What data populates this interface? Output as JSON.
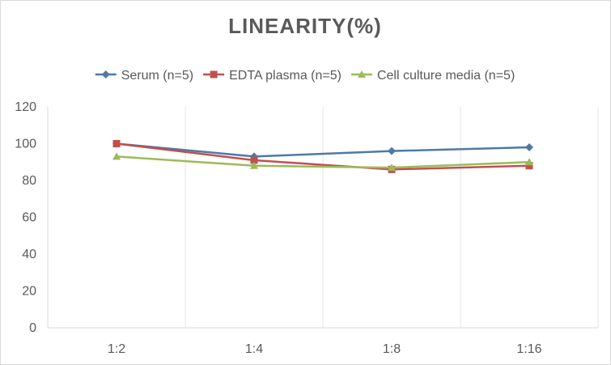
{
  "chart_data": {
    "type": "line",
    "title": "LINEARITY(%)",
    "xlabel": "",
    "ylabel": "",
    "categories": [
      "1:2",
      "1:4",
      "1:8",
      "1:16"
    ],
    "ylim": [
      0,
      120
    ],
    "yticks": [
      0,
      20,
      40,
      60,
      80,
      100,
      120
    ],
    "grid": "vertical",
    "legend": "top",
    "series": [
      {
        "name": "Serum (n=5)",
        "values": [
          100,
          93,
          96,
          98
        ],
        "color": "#4e79a7",
        "marker": "diamond"
      },
      {
        "name": "EDTA plasma (n=5)",
        "values": [
          100,
          91,
          86,
          88
        ],
        "color": "#c0504d",
        "marker": "square"
      },
      {
        "name": "Cell culture media (n=5)",
        "values": [
          93,
          88,
          87,
          90
        ],
        "color": "#9bbb59",
        "marker": "triangle"
      }
    ]
  }
}
